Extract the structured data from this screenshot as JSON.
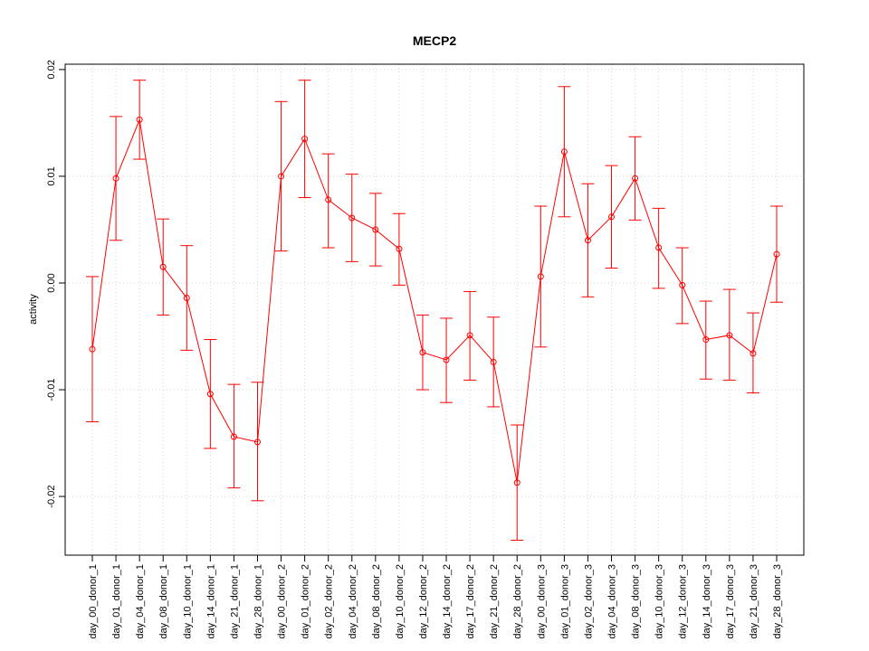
{
  "chart_data": {
    "type": "line",
    "title": "MECP2",
    "xlabel": "",
    "ylabel": "activity",
    "ylim": [
      -0.0255,
      0.0205
    ],
    "yticks": [
      -0.02,
      -0.01,
      0.0,
      0.01,
      0.02
    ],
    "ytick_labels": [
      "-0.02",
      "-0.01",
      "0.00",
      "0.01",
      "0.02"
    ],
    "grid": true,
    "color": "#ff0000",
    "categories": [
      "day_00_donor_1",
      "day_01_donor_1",
      "day_04_donor_1",
      "day_08_donor_1",
      "day_10_donor_1",
      "day_14_donor_1",
      "day_21_donor_1",
      "day_28_donor_1",
      "day_00_donor_2",
      "day_01_donor_2",
      "day_02_donor_2",
      "day_04_donor_2",
      "day_08_donor_2",
      "day_10_donor_2",
      "day_12_donor_2",
      "day_14_donor_2",
      "day_17_donor_2",
      "day_21_donor_2",
      "day_28_donor_2",
      "day_00_donor_3",
      "day_01_donor_3",
      "day_02_donor_3",
      "day_04_donor_3",
      "day_08_donor_3",
      "day_10_donor_3",
      "day_12_donor_3",
      "day_14_donor_3",
      "day_17_donor_3",
      "day_21_donor_3",
      "day_28_donor_3"
    ],
    "series": [
      {
        "values": [
          -0.0062,
          0.0098,
          0.0153,
          0.0015,
          -0.0014,
          -0.0104,
          -0.0144,
          -0.0149,
          0.01,
          0.0135,
          0.0078,
          0.0061,
          0.005,
          0.0032,
          -0.0065,
          -0.0072,
          -0.0049,
          -0.0074,
          -0.0187,
          0.0006,
          0.0123,
          0.004,
          0.0062,
          0.0098,
          0.0033,
          -0.0002,
          -0.0053,
          -0.0049,
          -0.0066,
          0.0027
        ],
        "upper": [
          0.0006,
          0.0156,
          0.019,
          0.006,
          0.0035,
          -0.0053,
          -0.0095,
          -0.0093,
          0.017,
          0.019,
          0.0121,
          0.0102,
          0.0084,
          0.0065,
          -0.003,
          -0.0033,
          -0.0008,
          -0.0032,
          -0.0133,
          0.0072,
          0.0184,
          0.0093,
          0.011,
          0.0137,
          0.007,
          0.0033,
          -0.0017,
          -0.0006,
          -0.0028,
          0.0072
        ],
        "lower": [
          -0.013,
          0.004,
          0.0116,
          -0.003,
          -0.0063,
          -0.0155,
          -0.0192,
          -0.0204,
          0.003,
          0.008,
          0.0033,
          0.002,
          0.0016,
          -0.0002,
          -0.01,
          -0.0112,
          -0.0091,
          -0.0116,
          -0.0241,
          -0.006,
          0.0062,
          -0.0013,
          0.0014,
          0.0059,
          -0.0005,
          -0.0038,
          -0.009,
          -0.0091,
          -0.0103,
          -0.0018
        ]
      }
    ]
  }
}
